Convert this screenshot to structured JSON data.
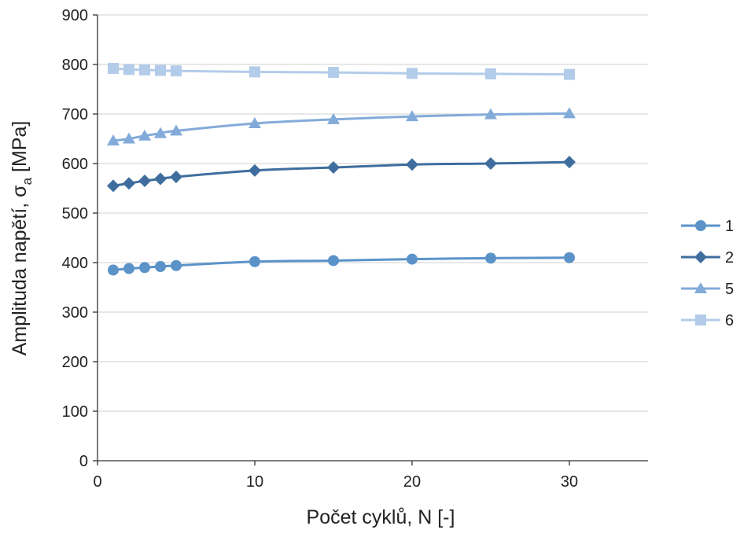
{
  "chart_data": {
    "type": "line",
    "title": "",
    "xlabel": "Počet cyklů, N [-]",
    "ylabel": {
      "prefix": "Amplituda napětí, σ",
      "subscript": "a",
      "suffix": " [MPa]"
    },
    "xlim": [
      0,
      35
    ],
    "ylim": [
      0,
      900
    ],
    "x_ticks": [
      0,
      10,
      20,
      30
    ],
    "y_ticks": [
      0,
      100,
      200,
      300,
      400,
      500,
      600,
      700,
      800,
      900
    ],
    "grid": "horizontal",
    "legend_position": "right",
    "x": [
      1,
      2,
      3,
      4,
      5,
      10,
      15,
      20,
      25,
      30
    ],
    "series": [
      {
        "name": "1",
        "marker": "circle",
        "color": "#5b93c9",
        "values": [
          385,
          388,
          390,
          392,
          394,
          402,
          404,
          407,
          409,
          410
        ]
      },
      {
        "name": "2",
        "marker": "diamond",
        "color": "#3f6e9e",
        "values": [
          555,
          560,
          565,
          569,
          573,
          586,
          592,
          598,
          600,
          603
        ]
      },
      {
        "name": "5",
        "marker": "triangle",
        "color": "#83abd9",
        "values": [
          646,
          650,
          656,
          661,
          666,
          681,
          689,
          695,
          699,
          701
        ]
      },
      {
        "name": "6",
        "marker": "square",
        "color": "#b3cce9",
        "values": [
          792,
          790,
          789,
          788,
          787,
          785,
          784,
          782,
          781,
          780
        ]
      }
    ]
  }
}
